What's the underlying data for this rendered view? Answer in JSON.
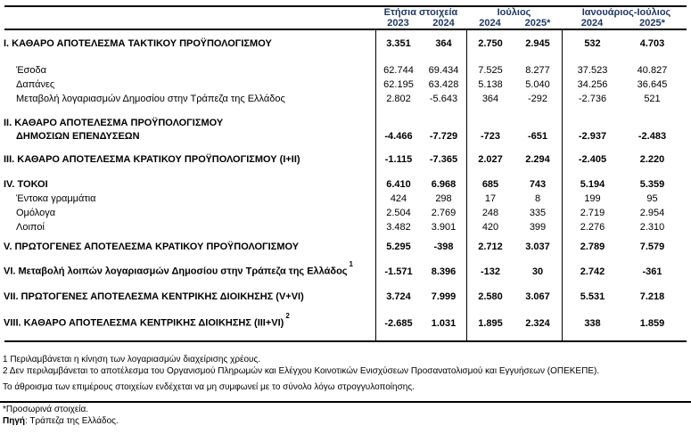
{
  "colors": {
    "header_text": "#1f3864",
    "line": "#000000"
  },
  "table": {
    "header": {
      "groups": [
        {
          "label": "Ετήσια στοιχεία",
          "years": [
            "2023",
            "2024"
          ]
        },
        {
          "label": "Ιούλιος",
          "years": [
            "2024",
            "2025*"
          ]
        },
        {
          "label": "Ιανουάριος-Ιούλιος",
          "years": [
            "2024",
            "2025*"
          ]
        }
      ]
    },
    "rows": [
      {
        "id": "I",
        "label": "I. ΚΑΘΑΡΟ ΑΠΟΤΕΛΕΣΜΑ ΤΑΚΤΙΚΟΥ ΠΡΟΫΠΟΛΟΓΙΣΜΟΥ",
        "bold": true,
        "values": [
          "3.351",
          "364",
          "2.750",
          "2.945",
          "532",
          "4.703"
        ]
      },
      {
        "id": "esoda",
        "label": "Έσοδα",
        "indent": true,
        "values": [
          "62.744",
          "69.434",
          "7.525",
          "8.277",
          "37.523",
          "40.827"
        ]
      },
      {
        "id": "dapanes",
        "label": "Δαπάνες",
        "indent": true,
        "values": [
          "62.195",
          "63.428",
          "5.138",
          "5.040",
          "34.256",
          "36.645"
        ]
      },
      {
        "id": "metavoli",
        "label": "Μεταβολή λογαριασμών Δημοσίου στην Τράπεζα της Ελλάδος",
        "indent": true,
        "values": [
          "2.802",
          "-5.643",
          "364",
          "-292",
          "-2.736",
          "521"
        ]
      },
      {
        "id": "II",
        "label": "II. ΚΑΘΑΡΟ ΑΠΟΤΕΛΕΣΜΑ ΠΡΟΫΠΟΛΟΓΙΣΜΟΥ",
        "label2": "ΔΗΜΟΣΙΩΝ ΕΠΕΝΔΥΣΕΩΝ",
        "bold": true,
        "values": [
          "-4.466",
          "-7.729",
          "-723",
          "-651",
          "-2.937",
          "-2.483"
        ]
      },
      {
        "id": "III",
        "label": "III. ΚΑΘΑΡΟ ΑΠΟΤΕΛΕΣΜΑ ΚΡΑΤΙΚΟΥ ΠΡΟΫΠΟΛΟΓΙΣΜΟΥ (I+II)",
        "bold": true,
        "values": [
          "-1.115",
          "-7.365",
          "2.027",
          "2.294",
          "-2.405",
          "2.220"
        ]
      },
      {
        "id": "IV",
        "label": "IV. ΤΟΚΟΙ",
        "bold": true,
        "values": [
          "6.410",
          "6.968",
          "685",
          "743",
          "5.194",
          "5.359"
        ]
      },
      {
        "id": "entoka",
        "label": "Έντοκα γραμμάτια",
        "indent": true,
        "values": [
          "424",
          "298",
          "17",
          "8",
          "199",
          "95"
        ]
      },
      {
        "id": "omologa",
        "label": "Ομόλογα",
        "indent": true,
        "values": [
          "2.504",
          "2.769",
          "248",
          "335",
          "2.719",
          "2.954"
        ]
      },
      {
        "id": "loipoi",
        "label": "Λοιποί",
        "indent": true,
        "values": [
          "3.482",
          "3.901",
          "420",
          "399",
          "2.276",
          "2.310"
        ]
      },
      {
        "id": "V",
        "label": "V. ΠΡΩΤΟΓΕΝΕΣ ΑΠΟΤΕΛΕΣΜΑ ΚΡΑΤΙΚΟΥ ΠΡΟΫΠΟΛΟΓΙΣΜΟΥ",
        "bold": true,
        "values": [
          "5.295",
          "-398",
          "2.712",
          "3.037",
          "2.789",
          "7.579"
        ]
      },
      {
        "id": "VI",
        "label": "VI. Μεταβολή λοιπών λογαριασμών Δημοσίου στην Τράπεζα της Ελλάδος",
        "sup": "1",
        "bold": true,
        "values": [
          "-1.571",
          "8.396",
          "-132",
          "30",
          "2.742",
          "-361"
        ]
      },
      {
        "id": "VII",
        "label": "VII. ΠΡΩΤΟΓΕΝΕΣ ΑΠΟΤΕΛΕΣΜΑ ΚΕΝΤΡΙΚΗΣ ΔΙΟΙΚΗΣΗΣ (V+VI)",
        "bold": true,
        "values": [
          "3.724",
          "7.999",
          "2.580",
          "3.067",
          "5.531",
          "7.218"
        ]
      },
      {
        "id": "VIII",
        "label": "VIII. ΚΑΘΑΡΟ ΑΠΟΤΕΛΕΣΜΑ ΚΕΝΤΡΙΚΗΣ ΔΙΟΙΚΗΣΗΣ (III+VI)",
        "sup": "2",
        "bold": true,
        "values": [
          "-2.685",
          "1.031",
          "1.895",
          "2.324",
          "338",
          "1.859"
        ]
      }
    ]
  },
  "footnotes": {
    "note1": "1 Περιλαμβάνεται η κίνηση των λογαριασμών διαχείρισης χρέους.",
    "note2": "2 Δεν περιλαμβάνεται το αποτέλεσμα του Οργανισμού Πληρωμών και Ελέγχου Κοινοτικών Ενισχύσεων Προσανατολισμού και Εγγυήσεων (ΟΠΕΚΕΠΕ).",
    "rounding": "Το άθροισμα των επιμέρους στοιχείων ενδέχεται να μη συμφωνεί με το σύνολο λόγω στρογγυλοποίησης.",
    "provisional": "*Προσωρινά στοιχεία.",
    "source_label": "Πηγή",
    "source_rest": ": Τράπεζα της Ελλάδος."
  }
}
